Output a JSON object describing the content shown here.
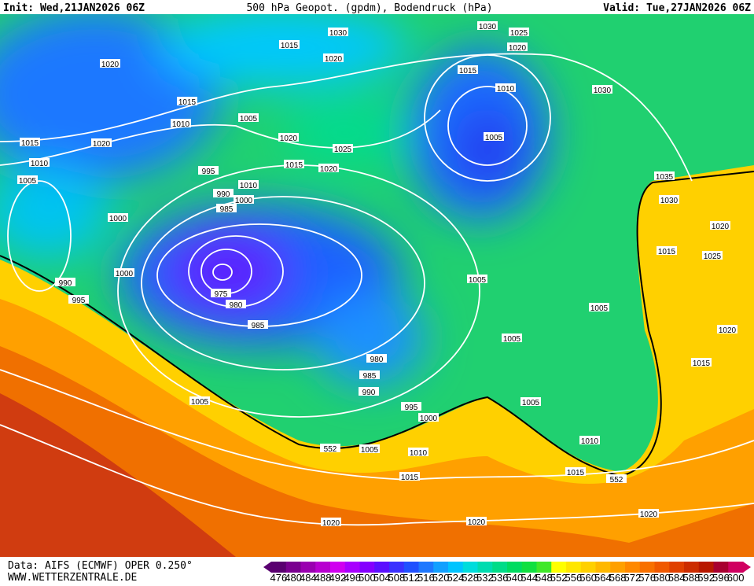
{
  "header": {
    "init": "Init: Wed,21JAN2026 06Z",
    "title": "500 hPa Geopot. (gpdm), Bodendruck (hPa)",
    "valid": "Valid: Tue,27JAN2026 06Z"
  },
  "footer": {
    "source": "Data: AIFS (ECMWF) OPER 0.250°",
    "site": "WWW.WETTERZENTRALE.DE"
  },
  "isobar_labels": [
    1030,
    1030,
    1025,
    1020,
    1015,
    1020,
    1020,
    1015,
    1010,
    1030,
    1015,
    1005,
    1010,
    1020,
    1005,
    1015,
    1020,
    1025,
    1010,
    1015,
    1020,
    995,
    1035,
    1005,
    1010,
    990,
    1000,
    1030,
    985,
    1000,
    1020,
    1015,
    1025,
    1000,
    1005,
    990,
    975,
    995,
    980,
    1005,
    985,
    1020,
    1005,
    980,
    1015,
    985,
    990,
    1005,
    1005,
    995,
    1000,
    1010,
    552,
    1005,
    1010,
    1015,
    552,
    1015,
    1020,
    1020,
    1020
  ],
  "colorbar": {
    "labels": [
      476,
      480,
      484,
      488,
      492,
      496,
      500,
      504,
      508,
      512,
      516,
      520,
      524,
      528,
      532,
      536,
      540,
      544,
      548,
      552,
      556,
      560,
      564,
      568,
      572,
      576,
      580,
      584,
      588,
      592,
      596,
      600
    ],
    "colors": [
      "#5a0070",
      "#7a0090",
      "#9a00b0",
      "#b800d0",
      "#d000f0",
      "#a800ff",
      "#8400ff",
      "#5a10ff",
      "#3a30ff",
      "#2050ff",
      "#1e78ff",
      "#12a0ff",
      "#00c4ff",
      "#00dcdc",
      "#00dcb0",
      "#00dc88",
      "#00dc60",
      "#10e040",
      "#40e828",
      "#ffff00",
      "#ffe600",
      "#ffd000",
      "#ffb800",
      "#ffa000",
      "#ff8800",
      "#f87000",
      "#f05800",
      "#e04000",
      "#cc2c00",
      "#b81800",
      "#a80030",
      "#d00060"
    ]
  }
}
